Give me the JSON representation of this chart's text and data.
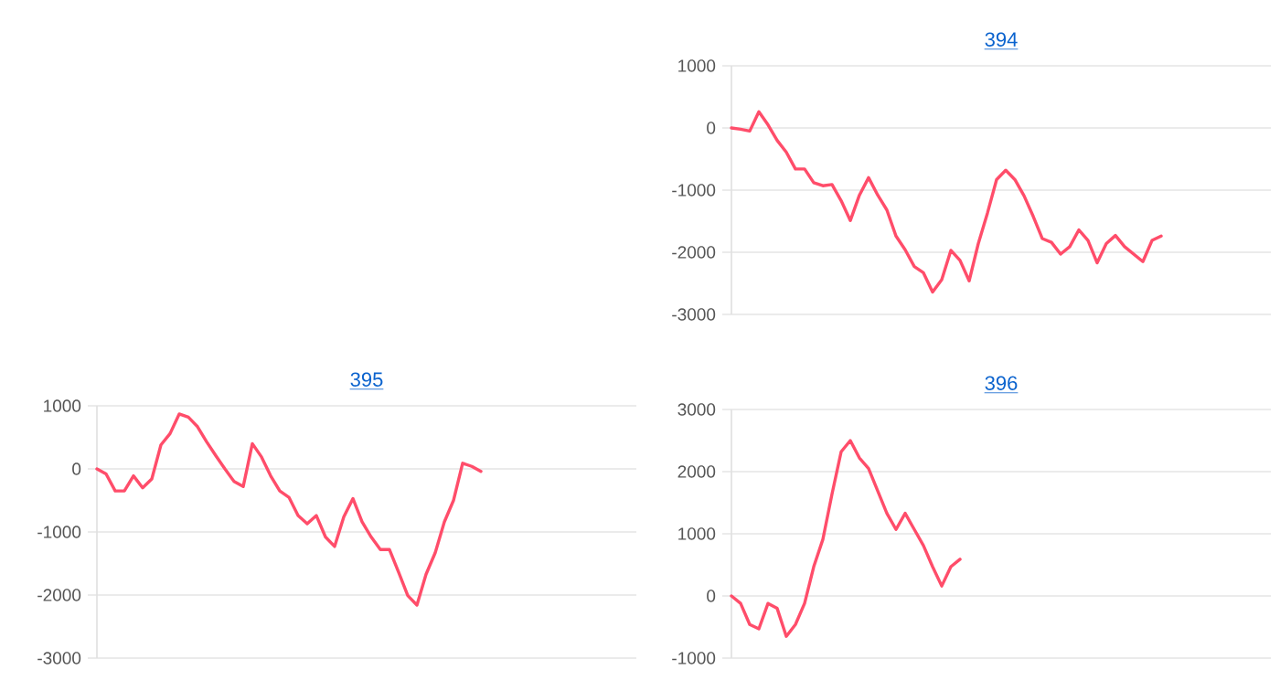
{
  "chart_data": [
    {
      "type": "line",
      "title": "394",
      "color": "#ff4d6a",
      "grid": "y",
      "tick_labels": "y",
      "ylim": [
        -3000,
        1000
      ],
      "yticks": [
        -3000,
        -2000,
        -1000,
        0,
        1000
      ],
      "categories": [
        null,
        null,
        null,
        null,
        null,
        null,
        null,
        null,
        null,
        null,
        null,
        null,
        null,
        null,
        null,
        null,
        null,
        null,
        null,
        null,
        null,
        null,
        null,
        null,
        null,
        null,
        null,
        null,
        null,
        null,
        null,
        null,
        null,
        null,
        null,
        null,
        null,
        null,
        null,
        null,
        null,
        null,
        null,
        null,
        null,
        null,
        null,
        null,
        null,
        null,
        null,
        null,
        null,
        null,
        null,
        null,
        null,
        null,
        null,
        null
      ],
      "values": [
        0,
        -20,
        -50,
        260,
        50,
        -200,
        -390,
        -660,
        -660,
        -880,
        -930,
        -910,
        -1170,
        -1490,
        -1080,
        -800,
        -1080,
        -1320,
        -1740,
        -1960,
        -2230,
        -2330,
        -2640,
        -2440,
        -1970,
        -2130,
        -2460,
        -1860,
        -1370,
        -830,
        -680,
        -830,
        -1090,
        -1420,
        -1780,
        -1840,
        -2030,
        -1910,
        -1640,
        -1810,
        -2170,
        -1860,
        -1730,
        -1910,
        -2030,
        -2150,
        -1810,
        -1740,
        null,
        null,
        null,
        null,
        null,
        null,
        null,
        null,
        null,
        null,
        null,
        null
      ]
    },
    {
      "type": "line",
      "title": "395",
      "color": "#ff4d6a",
      "grid": "y",
      "tick_labels": "y",
      "ylim": [
        -3000,
        1000
      ],
      "yticks": [
        -3000,
        -2000,
        -1000,
        0,
        1000
      ],
      "categories": [
        null,
        null,
        null,
        null,
        null,
        null,
        null,
        null,
        null,
        null,
        null,
        null,
        null,
        null,
        null,
        null,
        null,
        null,
        null,
        null,
        null,
        null,
        null,
        null,
        null,
        null,
        null,
        null,
        null,
        null,
        null,
        null,
        null,
        null,
        null,
        null,
        null,
        null,
        null,
        null,
        null,
        null,
        null,
        null,
        null,
        null,
        null,
        null,
        null,
        null,
        null,
        null,
        null,
        null,
        null,
        null,
        null,
        null,
        null,
        null
      ],
      "values": [
        0,
        -80,
        -350,
        -350,
        -110,
        -300,
        -160,
        380,
        560,
        870,
        820,
        670,
        430,
        210,
        0,
        -200,
        -280,
        400,
        190,
        -110,
        -350,
        -450,
        -740,
        -870,
        -740,
        -1080,
        -1230,
        -760,
        -470,
        -840,
        -1080,
        -1280,
        -1280,
        -1640,
        -2010,
        -2160,
        -1670,
        -1330,
        -840,
        -500,
        90,
        40,
        -40,
        null,
        null,
        null,
        null,
        null,
        null,
        null,
        null,
        null,
        null,
        null,
        null,
        null,
        null,
        null,
        null,
        null
      ]
    },
    {
      "type": "line",
      "title": "396",
      "color": "#ff4d6a",
      "grid": "y",
      "tick_labels": "y",
      "ylim": [
        -1000,
        3000
      ],
      "yticks": [
        -1000,
        0,
        1000,
        2000,
        3000
      ],
      "categories": [
        null,
        null,
        null,
        null,
        null,
        null,
        null,
        null,
        null,
        null,
        null,
        null,
        null,
        null,
        null,
        null,
        null,
        null,
        null,
        null,
        null,
        null,
        null,
        null,
        null,
        null,
        null,
        null,
        null,
        null,
        null,
        null,
        null,
        null,
        null,
        null,
        null,
        null,
        null,
        null,
        null,
        null,
        null,
        null,
        null,
        null,
        null,
        null,
        null,
        null,
        null,
        null,
        null,
        null,
        null,
        null,
        null,
        null,
        null,
        null
      ],
      "values": [
        0,
        -120,
        -460,
        -530,
        -120,
        -200,
        -650,
        -460,
        -120,
        470,
        910,
        1640,
        2320,
        2500,
        2220,
        2050,
        1690,
        1330,
        1070,
        1330,
        1070,
        810,
        470,
        160,
        470,
        590,
        null,
        null,
        null,
        null,
        null,
        null,
        null,
        null,
        null,
        null,
        null,
        null,
        null,
        null,
        null,
        null,
        null,
        null,
        null,
        null,
        null,
        null,
        null,
        null,
        null,
        null,
        null,
        null,
        null,
        null,
        null,
        null,
        null,
        null
      ]
    }
  ]
}
